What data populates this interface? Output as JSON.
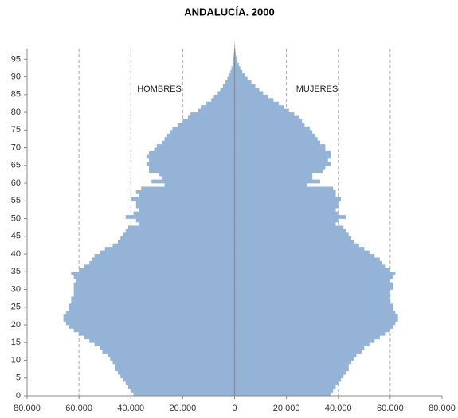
{
  "chart_data": {
    "type": "pyramid",
    "title": "ANDALUCÍA. 2000",
    "annotations": [
      "HOMBRES",
      "MUJERES"
    ],
    "ages": [
      0,
      1,
      2,
      3,
      4,
      5,
      6,
      7,
      8,
      9,
      10,
      11,
      12,
      13,
      14,
      15,
      16,
      17,
      18,
      19,
      20,
      21,
      22,
      23,
      24,
      25,
      26,
      27,
      28,
      29,
      30,
      31,
      32,
      33,
      34,
      35,
      36,
      37,
      38,
      39,
      40,
      41,
      42,
      43,
      44,
      45,
      46,
      47,
      48,
      49,
      50,
      51,
      52,
      53,
      54,
      55,
      56,
      57,
      58,
      59,
      60,
      61,
      62,
      63,
      64,
      65,
      66,
      67,
      68,
      69,
      70,
      71,
      72,
      73,
      74,
      75,
      76,
      77,
      78,
      79,
      80,
      81,
      82,
      83,
      84,
      85,
      86,
      87,
      88,
      89,
      90,
      91,
      92,
      93,
      94,
      95,
      96,
      97,
      98,
      99
    ],
    "series": [
      {
        "name": "HOMBRES",
        "side": "left",
        "color": "#95b3d7",
        "values": [
          39000,
          40000,
          41000,
          42000,
          43000,
          44000,
          45000,
          46000,
          46000,
          47000,
          48000,
          49000,
          51000,
          52000,
          54000,
          56000,
          58000,
          60000,
          62000,
          64000,
          65000,
          66000,
          66000,
          65000,
          64000,
          64000,
          63000,
          63000,
          62000,
          62000,
          62000,
          62000,
          61000,
          62000,
          63000,
          60000,
          58000,
          56000,
          55000,
          54000,
          52000,
          50000,
          47000,
          45000,
          44000,
          43000,
          42000,
          41000,
          37000,
          38000,
          42000,
          39000,
          37000,
          38000,
          38000,
          40000,
          37000,
          38000,
          36000,
          27000,
          32000,
          28000,
          29000,
          33000,
          33000,
          34000,
          33000,
          34000,
          33000,
          31000,
          30000,
          28000,
          27000,
          26000,
          25000,
          24000,
          22000,
          20000,
          18000,
          17000,
          14000,
          13000,
          11000,
          9000,
          8000,
          6500,
          5500,
          4500,
          3500,
          2800,
          2200,
          1600,
          1200,
          800,
          600,
          400,
          250,
          150,
          100,
          50
        ]
      },
      {
        "name": "MUJERES",
        "side": "right",
        "color": "#95b3d7",
        "values": [
          37000,
          38000,
          39000,
          40000,
          41000,
          42000,
          43000,
          44000,
          44000,
          45000,
          46000,
          47000,
          49000,
          50000,
          52000,
          54000,
          56000,
          58000,
          60000,
          61000,
          62000,
          63000,
          63000,
          62000,
          61000,
          61000,
          60000,
          60000,
          60000,
          60000,
          61000,
          61000,
          60000,
          61000,
          62000,
          60000,
          58000,
          57000,
          56000,
          54000,
          52000,
          50000,
          48000,
          46000,
          45000,
          44000,
          43000,
          42000,
          39000,
          40000,
          43000,
          40000,
          39000,
          40000,
          40000,
          41000,
          39000,
          39000,
          38000,
          28000,
          33000,
          30000,
          30000,
          34000,
          35000,
          37000,
          36000,
          37000,
          37000,
          35000,
          35000,
          33000,
          32000,
          31000,
          30000,
          29000,
          27000,
          26000,
          25000,
          23000,
          21000,
          19000,
          17000,
          15000,
          13000,
          11000,
          9500,
          8000,
          6500,
          5000,
          4000,
          3000,
          2200,
          1600,
          1100,
          700,
          450,
          300,
          200,
          100
        ]
      }
    ],
    "xlim": [
      -80000,
      80000
    ],
    "xticks": [
      {
        "value": -80000,
        "label": "80.000"
      },
      {
        "value": -60000,
        "label": "60.000"
      },
      {
        "value": -40000,
        "label": "40.000"
      },
      {
        "value": -20000,
        "label": "20.000"
      },
      0,
      {
        "value": 20000,
        "label": "20.000"
      },
      {
        "value": 40000,
        "label": "40.000"
      },
      {
        "value": 60000,
        "label": "60.000"
      },
      {
        "value": 80000,
        "label": "80.000"
      }
    ],
    "ylim": [
      0,
      98
    ],
    "yticks": [
      0,
      5,
      10,
      15,
      20,
      25,
      30,
      35,
      40,
      45,
      50,
      55,
      60,
      65,
      70,
      75,
      80,
      85,
      90,
      95
    ],
    "grid": true
  }
}
